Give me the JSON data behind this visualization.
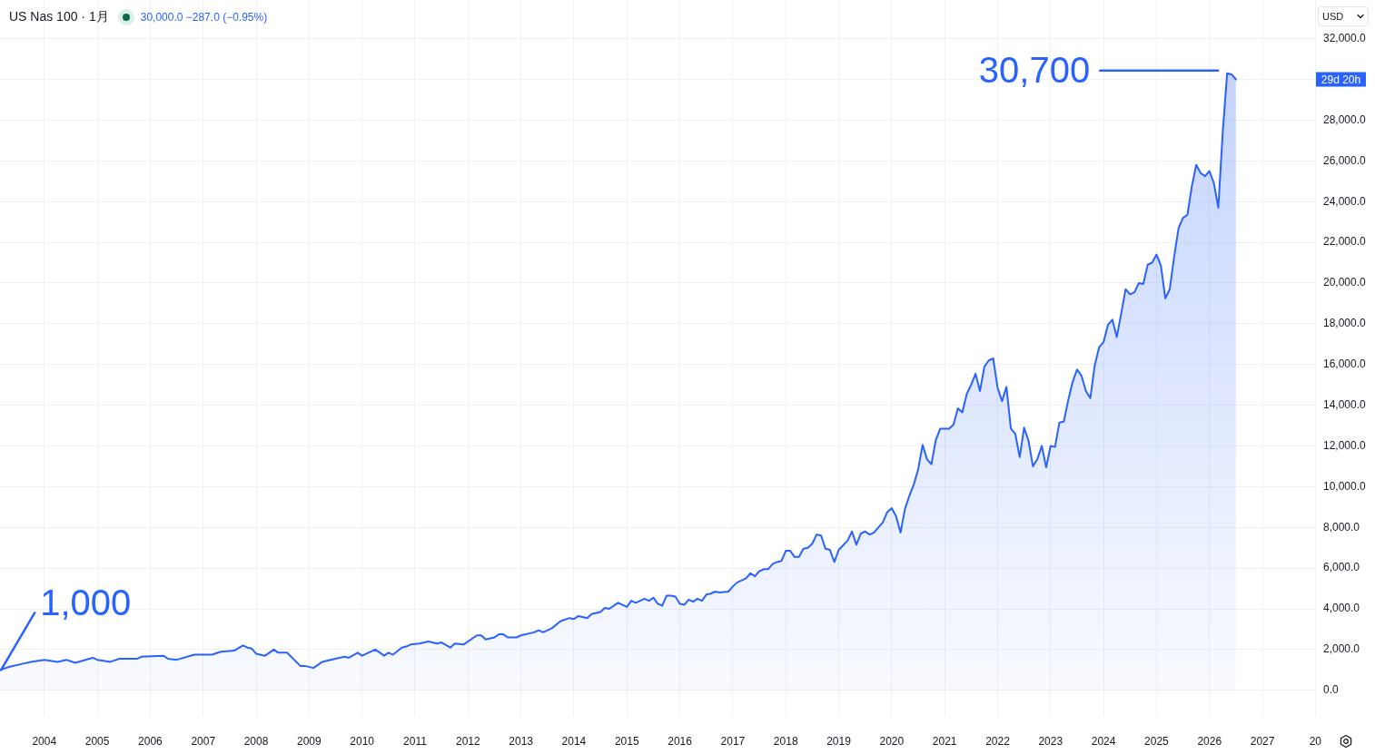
{
  "chart_data": {
    "type": "area",
    "title": "US Nas 100 · 1月",
    "subtitle": "30,000.0 −287.0 (−0.95%)",
    "ylabel": "USD",
    "color": "#2962ff",
    "x": [
      "2003-03",
      "2003-05",
      "2003-08",
      "2003-10",
      "2004-01",
      "2004-04",
      "2004-06",
      "2004-08",
      "2004-12",
      "2005-01",
      "2005-04",
      "2005-06",
      "2005-10",
      "2005-11",
      "2006-04",
      "2006-05",
      "2006-07",
      "2006-11",
      "2007-03",
      "2007-05",
      "2007-08",
      "2007-10",
      "2007-11",
      "2007-12",
      "2008-01",
      "2008-03",
      "2008-04",
      "2008-05",
      "2008-06",
      "2008-08",
      "2008-11",
      "2008-12",
      "2009-02",
      "2009-04",
      "2009-05",
      "2009-07",
      "2009-09",
      "2009-10",
      "2009-12",
      "2010-01",
      "2010-04",
      "2010-06",
      "2010-07",
      "2010-08",
      "2010-10",
      "2010-11",
      "2010-12",
      "2011-02",
      "2011-04",
      "2011-06",
      "2011-07",
      "2011-09",
      "2011-10",
      "2011-12",
      "2012-03",
      "2012-04",
      "2012-05",
      "2012-07",
      "2012-08",
      "2012-09",
      "2012-10",
      "2012-12",
      "2013-01",
      "2013-04",
      "2013-05",
      "2013-06",
      "2013-08",
      "2013-10",
      "2013-12",
      "2014-01",
      "2014-02",
      "2014-04",
      "2014-05",
      "2014-07",
      "2014-08",
      "2014-09",
      "2014-11",
      "2015-01",
      "2015-02",
      "2015-03",
      "2015-05",
      "2015-06",
      "2015-07",
      "2015-08",
      "2015-09",
      "2015-10",
      "2015-11",
      "2015-12",
      "2016-01",
      "2016-02",
      "2016-03",
      "2016-04",
      "2016-05",
      "2016-06",
      "2016-07",
      "2016-08",
      "2016-09",
      "2016-10",
      "2016-12",
      "2017-01",
      "2017-02",
      "2017-04",
      "2017-05",
      "2017-06",
      "2017-07",
      "2017-08",
      "2017-09",
      "2017-10",
      "2017-11",
      "2017-12",
      "2018-01",
      "2018-02",
      "2018-03",
      "2018-04",
      "2018-05",
      "2018-06",
      "2018-07",
      "2018-08",
      "2018-09",
      "2018-10",
      "2018-11",
      "2018-12",
      "2019-01",
      "2019-03",
      "2019-04",
      "2019-05",
      "2019-06",
      "2019-07",
      "2019-08",
      "2019-09",
      "2019-11",
      "2019-12",
      "2020-01",
      "2020-02",
      "2020-03",
      "2020-04",
      "2020-05",
      "2020-06",
      "2020-07",
      "2020-08",
      "2020-09",
      "2020-10",
      "2020-11",
      "2020-12",
      "2021-01",
      "2021-02",
      "2021-03",
      "2021-04",
      "2021-05",
      "2021-06",
      "2021-07",
      "2021-08",
      "2021-09",
      "2021-10",
      "2021-11",
      "2021-12",
      "2022-01",
      "2022-02",
      "2022-03",
      "2022-04",
      "2022-05",
      "2022-06",
      "2022-07",
      "2022-08",
      "2022-09",
      "2022-10",
      "2022-11",
      "2022-12",
      "2023-01",
      "2023-02",
      "2023-03",
      "2023-04",
      "2023-05",
      "2023-06",
      "2023-07",
      "2023-08",
      "2023-09",
      "2023-10",
      "2023-11",
      "2023-12",
      "2024-01",
      "2024-02",
      "2024-03",
      "2024-04",
      "2024-05",
      "2024-06",
      "2024-07",
      "2024-08",
      "2024-09",
      "2024-10",
      "2024-11",
      "2024-12",
      "2025-01",
      "2025-02",
      "2025-03",
      "2025-04",
      "2025-05",
      "2025-06",
      "2025-07",
      "2025-08",
      "2025-09",
      "2025-10",
      "2025-11",
      "2025-12",
      "2026-01",
      "2026-02",
      "2026-03",
      "2026-04",
      "2026-05",
      "2026-06",
      "2026-07"
    ],
    "values": [
      1000,
      1150,
      1300,
      1400,
      1500,
      1400,
      1500,
      1350,
      1600,
      1500,
      1400,
      1550,
      1550,
      1650,
      1700,
      1550,
      1500,
      1750,
      1750,
      1900,
      1950,
      2200,
      2100,
      2050,
      1800,
      1700,
      1850,
      2000,
      1850,
      1850,
      1200,
      1200,
      1100,
      1400,
      1450,
      1550,
      1650,
      1600,
      1850,
      1700,
      2000,
      1700,
      1850,
      1750,
      2100,
      2150,
      2250,
      2300,
      2400,
      2300,
      2350,
      2100,
      2300,
      2250,
      2700,
      2700,
      2500,
      2600,
      2750,
      2750,
      2600,
      2600,
      2700,
      2850,
      2950,
      2850,
      3050,
      3400,
      3550,
      3500,
      3650,
      3550,
      3750,
      3850,
      4050,
      4000,
      4300,
      4100,
      4400,
      4300,
      4500,
      4400,
      4550,
      4250,
      4150,
      4650,
      4650,
      4600,
      4250,
      4200,
      4450,
      4350,
      4500,
      4400,
      4700,
      4750,
      4850,
      4800,
      4850,
      5100,
      5300,
      5500,
      5750,
      5600,
      5850,
      5950,
      5950,
      6200,
      6300,
      6350,
      6850,
      6850,
      6550,
      6550,
      6950,
      7000,
      7200,
      7650,
      7600,
      6950,
      6900,
      6300,
      6900,
      7350,
      7800,
      7150,
      7700,
      7800,
      7650,
      7750,
      8250,
      8750,
      8950,
      8550,
      7750,
      8900,
      9550,
      10100,
      10850,
      12050,
      11350,
      11100,
      12300,
      12850,
      12850,
      12850,
      13050,
      13850,
      13650,
      14550,
      15000,
      15550,
      14700,
      15900,
      16200,
      16300,
      14850,
      14200,
      14900,
      12850,
      12600,
      11450,
      12900,
      12250,
      11000,
      11350,
      12000,
      10950,
      12000,
      11950,
      13150,
      13200,
      14250,
      15150,
      15750,
      15450,
      14700,
      14350,
      15950,
      16850,
      17100,
      17950,
      18200,
      17350,
      18500,
      19700,
      19450,
      19550,
      20000,
      19950,
      20900,
      21000,
      21400,
      20850,
      19250,
      19700,
      21300,
      22700,
      23200,
      23350,
      24750,
      25800,
      25400,
      25250,
      25500,
      24900,
      23700,
      27400,
      30300,
      30250,
      30000
    ],
    "xlim": [
      "2003-02-28",
      "2028-01-05"
    ],
    "ylim": [
      -1300,
      33900
    ],
    "xticks": [
      "2004",
      "2005",
      "2006",
      "2007",
      "2008",
      "2009",
      "2010",
      "2011",
      "2012",
      "2013",
      "2014",
      "2015",
      "2016",
      "2017",
      "2018",
      "2019",
      "2020",
      "2021",
      "2022",
      "2023",
      "2024",
      "2025",
      "2026",
      "2027",
      {
        "value": "2028",
        "label": "20"
      }
    ],
    "yticks": [
      {
        "value": 0,
        "label": "0.0"
      },
      {
        "value": 2000,
        "label": "2,000.0"
      },
      {
        "value": 4000,
        "label": "4,000.0"
      },
      {
        "value": 6000,
        "label": "6,000.0"
      },
      {
        "value": 8000,
        "label": "8,000.0"
      },
      {
        "value": 10000,
        "label": "10,000.0"
      },
      {
        "value": 12000,
        "label": "12,000.0"
      },
      {
        "value": 14000,
        "label": "14,000.0"
      },
      {
        "value": 16000,
        "label": "16,000.0"
      },
      {
        "value": 18000,
        "label": "18,000.0"
      },
      {
        "value": 20000,
        "label": "20,000.0"
      },
      {
        "value": 22000,
        "label": "22,000.0"
      },
      {
        "value": 24000,
        "label": "24,000.0"
      },
      {
        "value": 26000,
        "label": "26,000.0"
      },
      {
        "value": 28000,
        "label": "28,000.0"
      },
      {
        "value": 30000,
        "label": null
      },
      {
        "value": 32000,
        "label": "32,000.0"
      }
    ],
    "grid": true,
    "annotations": [
      {
        "text": "1,000",
        "x": "2003-03",
        "y": 1000
      },
      "30,700",
      "29d 20h"
    ]
  }
}
